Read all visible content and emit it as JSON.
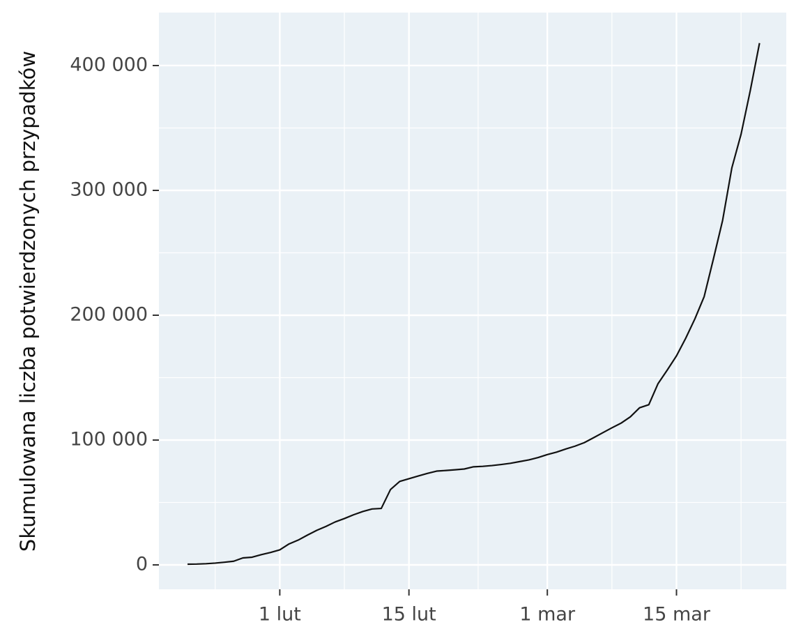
{
  "chart_data": {
    "type": "line",
    "y_label": "Skumulowana liczba potwierdzonych przypadków",
    "x": [
      22,
      23,
      24,
      25,
      26,
      27,
      28,
      29,
      30,
      31,
      32,
      33,
      34,
      35,
      36,
      37,
      38,
      39,
      40,
      41,
      42,
      43,
      44,
      45,
      46,
      47,
      48,
      49,
      50,
      51,
      52,
      53,
      54,
      55,
      56,
      57,
      58,
      59,
      60,
      61,
      62,
      63,
      64,
      65,
      66,
      67,
      68,
      69,
      70,
      71,
      72,
      73,
      74,
      75,
      76,
      77,
      78,
      79,
      80,
      81,
      82,
      83,
      84
    ],
    "values": [
      555,
      654,
      941,
      1434,
      2118,
      2927,
      5578,
      6166,
      8234,
      9927,
      12038,
      16787,
      19881,
      23892,
      27635,
      30817,
      34391,
      37120,
      40150,
      42762,
      44802,
      45221,
      60368,
      66885,
      69030,
      71224,
      73258,
      75136,
      75639,
      76197,
      76819,
      78572,
      78958,
      79561,
      80406,
      81388,
      82746,
      84112,
      86011,
      88369,
      90306,
      92840,
      95120,
      97886,
      101801,
      105847,
      109821,
      113590,
      118620,
      125875,
      128343,
      145193,
      156099,
      167447,
      181546,
      197168,
      214915,
      245000,
      276000,
      318000,
      345000,
      380000,
      418000
    ],
    "color": "#111111",
    "xlim": [
      18.9,
      86.9
    ],
    "xticks": [
      {
        "value": 32,
        "label": "1 lut"
      },
      {
        "value": 46,
        "label": "15 lut"
      },
      {
        "value": 61,
        "label": "1 mar"
      },
      {
        "value": 75,
        "label": "15 mar"
      }
    ],
    "ylim": [
      -19550,
      442450
    ],
    "yticks": [
      0,
      {
        "value": 100000,
        "label": "100 000"
      },
      {
        "value": 200000,
        "label": "200 000"
      },
      {
        "value": 300000,
        "label": "300 000"
      },
      {
        "value": 400000,
        "label": "400 000"
      }
    ],
    "grid": true
  }
}
